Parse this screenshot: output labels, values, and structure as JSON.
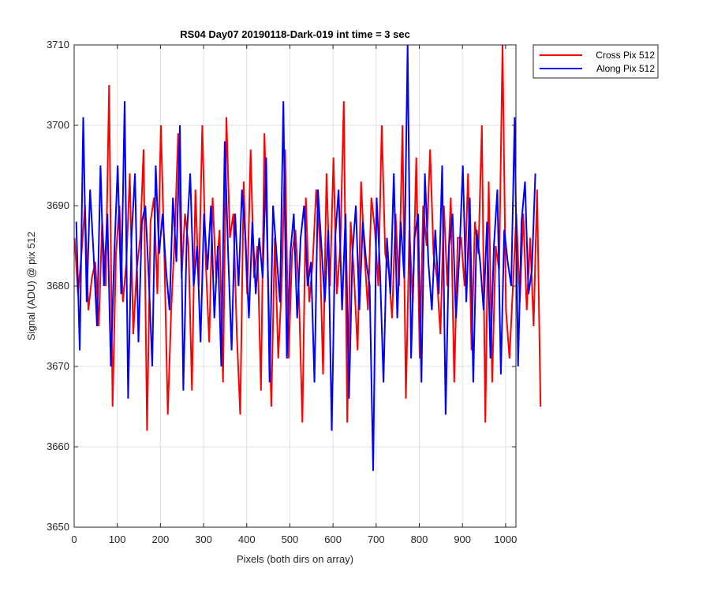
{
  "chart_data": {
    "type": "line",
    "title": "RS04 Day07 20190118-Dark-019 int time = 3 sec",
    "xlabel": "Pixels (both dirs on array)",
    "ylabel": "Signal (ADU) @ pix 512",
    "xlim": [
      0,
      1024
    ],
    "ylim": [
      3650,
      3710
    ],
    "xticks": [
      0,
      100,
      200,
      300,
      400,
      500,
      600,
      700,
      800,
      900,
      1000
    ],
    "yticks": [
      3650,
      3660,
      3670,
      3680,
      3690,
      3700,
      3710
    ],
    "grid": true,
    "legend_position": "outside-top-right",
    "series": [
      {
        "name": "Cross Pix 512",
        "color": "#ff0000",
        "x_start": 1,
        "x_step": 8,
        "values": [
          3686,
          3679,
          3684,
          3690,
          3677,
          3681,
          3683,
          3675,
          3688,
          3680,
          3705,
          3665,
          3684,
          3690,
          3678,
          3683,
          3694,
          3674,
          3682,
          3686,
          3697,
          3662,
          3688,
          3691,
          3679,
          3700,
          3684,
          3664,
          3677,
          3686,
          3699,
          3681,
          3689,
          3685,
          3667,
          3692,
          3680,
          3700,
          3683,
          3673,
          3691,
          3681,
          3687,
          3668,
          3701,
          3686,
          3689,
          3674,
          3664,
          3693,
          3679,
          3697,
          3681,
          3685,
          3667,
          3699,
          3682,
          3665,
          3686,
          3671,
          3680,
          3697,
          3671,
          3684,
          3687,
          3679,
          3663,
          3691,
          3678,
          3683,
          3692,
          3686,
          3669,
          3694,
          3680,
          3696,
          3679,
          3685,
          3703,
          3663,
          3688,
          3681,
          3672,
          3693,
          3684,
          3677,
          3691,
          3687,
          3680,
          3700,
          3684,
          3682,
          3676,
          3689,
          3680,
          3700,
          3666,
          3687,
          3678,
          3696,
          3671,
          3690,
          3685,
          3697,
          3684,
          3681,
          3674,
          3690,
          3680,
          3691,
          3668,
          3686,
          3686,
          3680,
          3694,
          3672,
          3688,
          3684,
          3700,
          3663,
          3693,
          3668,
          3685,
          3682,
          3710,
          3677,
          3671,
          3680,
          3689,
          3678,
          3689,
          3677,
          3686,
          3675,
          3692,
          3665
        ]
      },
      {
        "name": "Along Pix 512",
        "color": "#0000ff",
        "x_start": 5,
        "x_step": 8,
        "values": [
          3688,
          3672,
          3701,
          3678,
          3692,
          3684,
          3675,
          3695,
          3680,
          3689,
          3670,
          3684,
          3695,
          3679,
          3703,
          3666,
          3686,
          3694,
          3673,
          3688,
          3690,
          3681,
          3670,
          3695,
          3684,
          3689,
          3682,
          3677,
          3691,
          3683,
          3700,
          3667,
          3686,
          3694,
          3680,
          3685,
          3673,
          3689,
          3682,
          3690,
          3676,
          3685,
          3670,
          3698,
          3684,
          3672,
          3689,
          3680,
          3692,
          3686,
          3676,
          3688,
          3679,
          3686,
          3681,
          3696,
          3668,
          3690,
          3684,
          3678,
          3703,
          3671,
          3684,
          3689,
          3676,
          3686,
          3690,
          3680,
          3683,
          3668,
          3692,
          3685,
          3678,
          3687,
          3662,
          3686,
          3692,
          3677,
          3689,
          3666,
          3684,
          3690,
          3677,
          3688,
          3683,
          3680,
          3657,
          3691,
          3682,
          3668,
          3686,
          3679,
          3694,
          3676,
          3688,
          3681,
          3710,
          3671,
          3686,
          3689,
          3668,
          3694,
          3683,
          3677,
          3687,
          3679,
          3695,
          3664,
          3685,
          3689,
          3676,
          3684,
          3695,
          3678,
          3691,
          3668,
          3687,
          3683,
          3677,
          3688,
          3671,
          3685,
          3692,
          3669,
          3687,
          3683,
          3680,
          3701,
          3670,
          3688,
          3693,
          3679,
          3682,
          3694
        ]
      }
    ]
  }
}
